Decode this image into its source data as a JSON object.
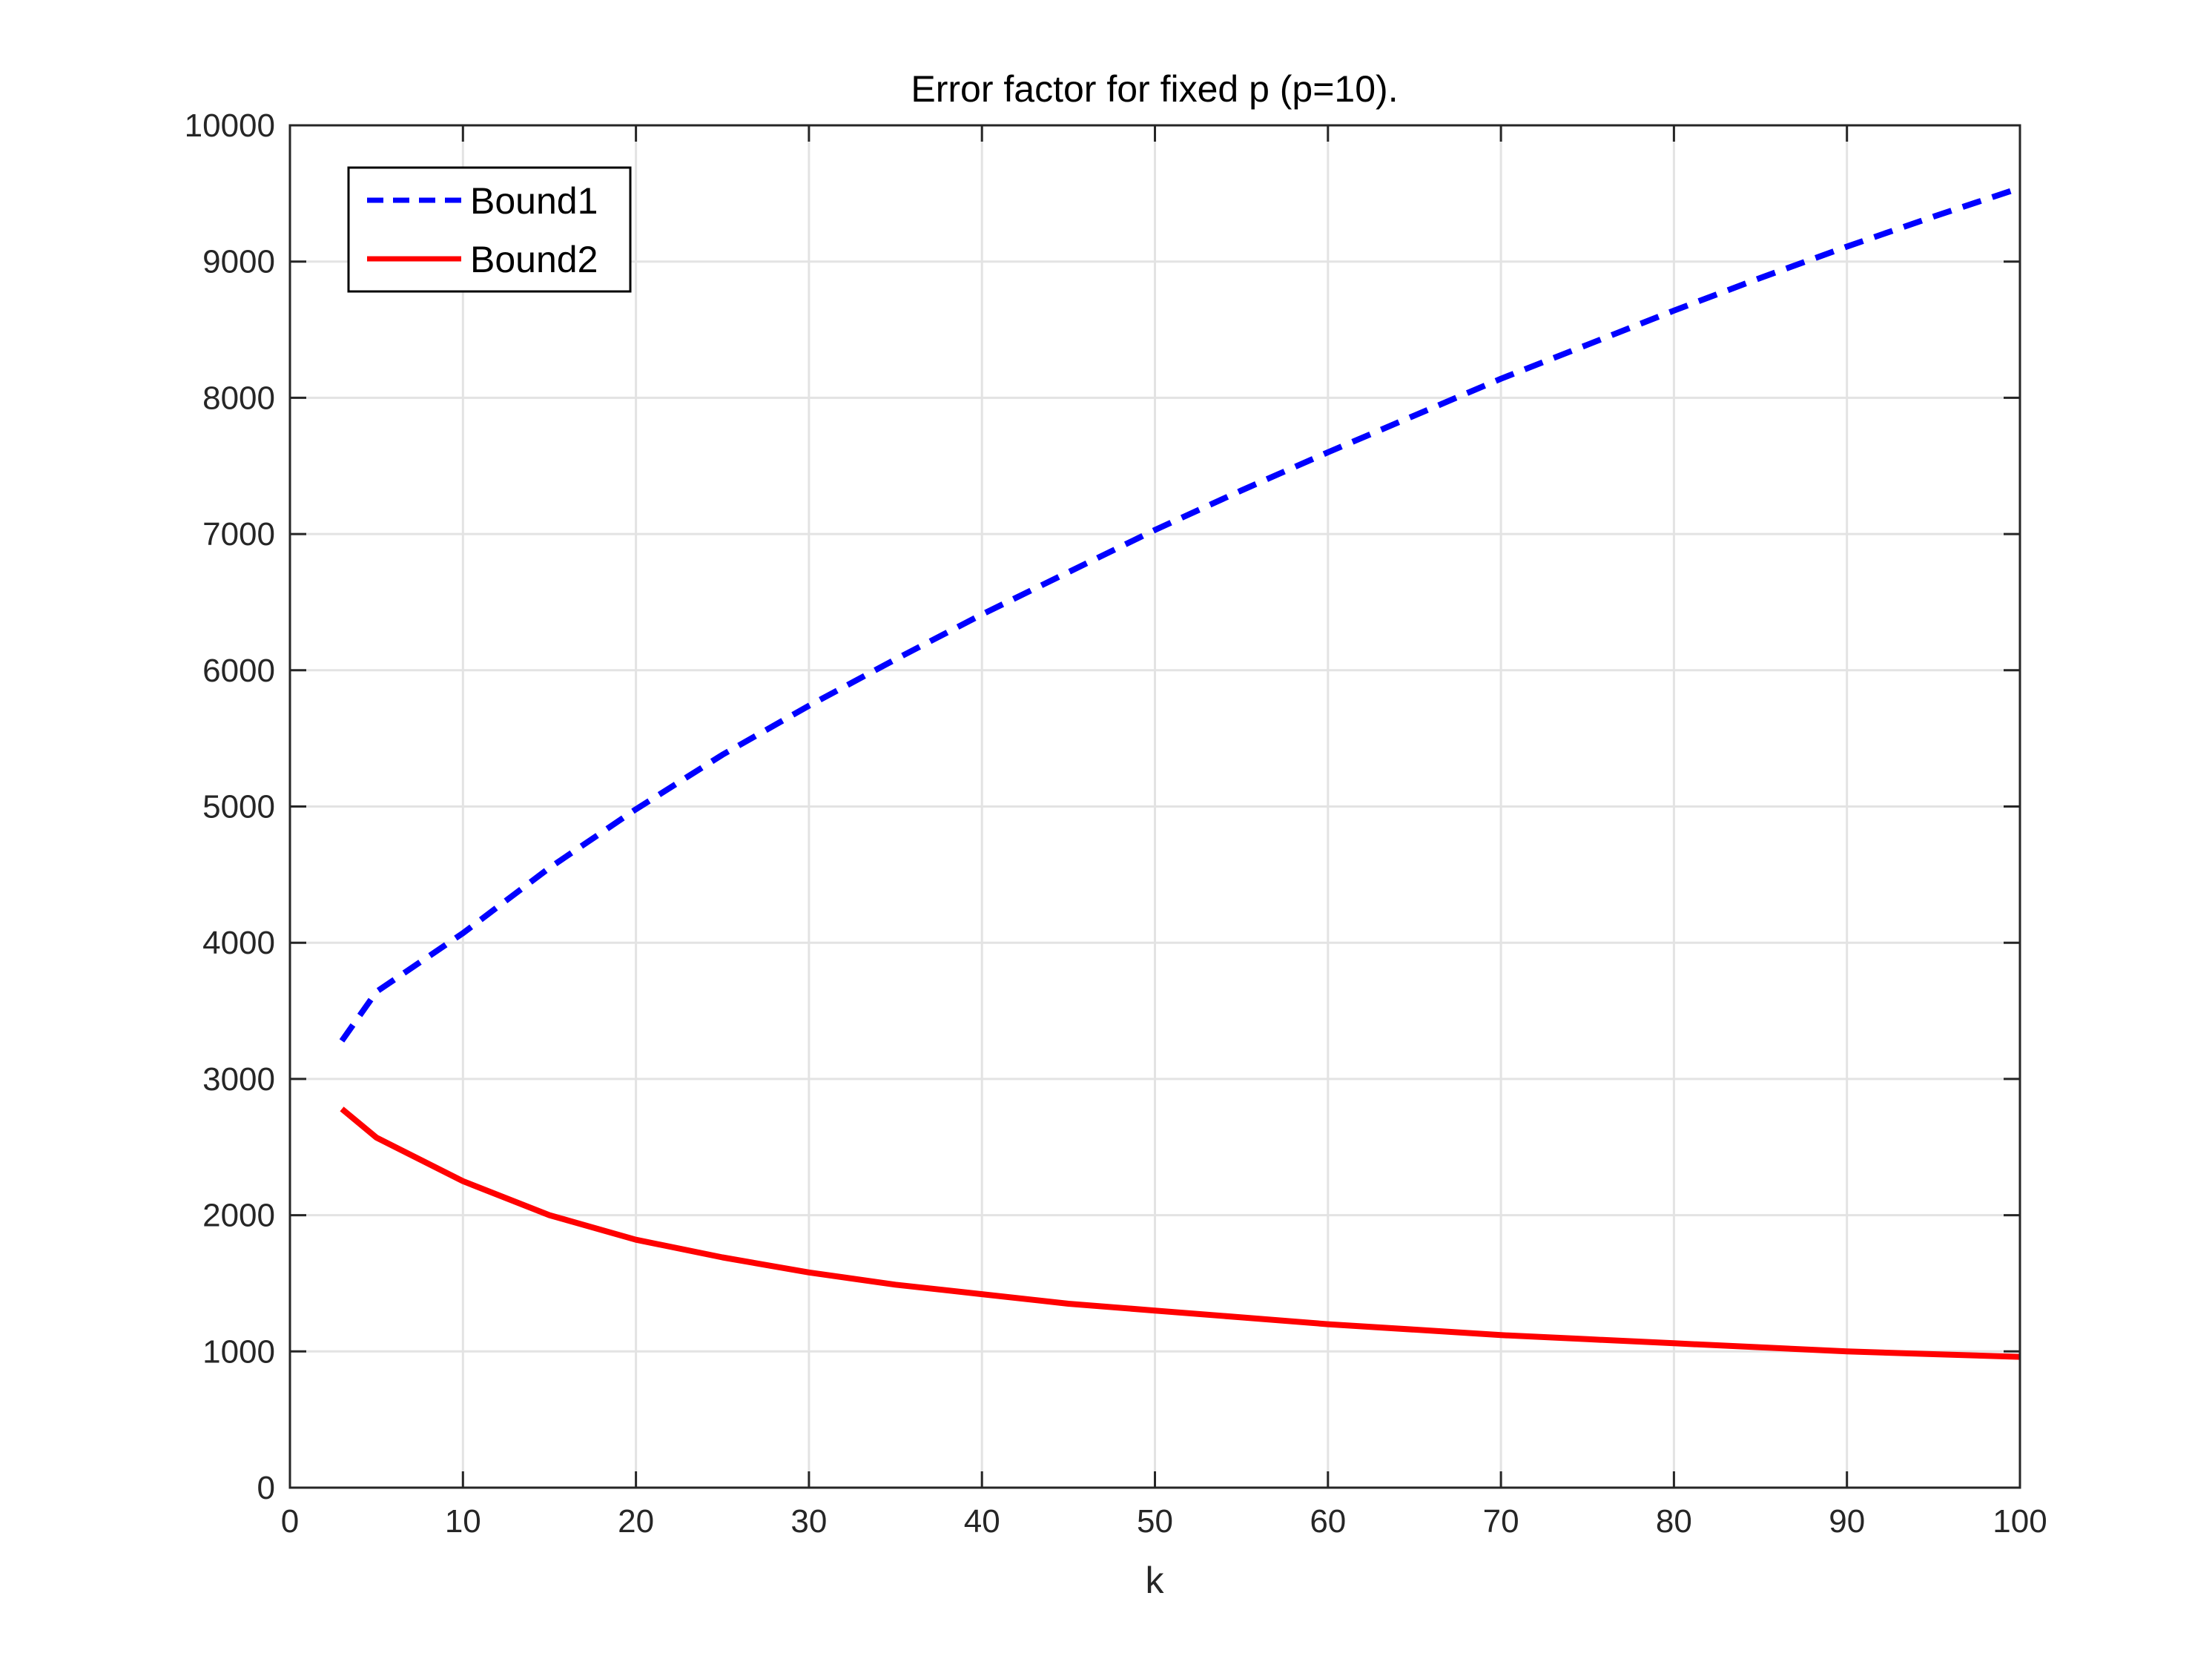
{
  "chart_data": {
    "type": "line",
    "title": "Error factor for fixed p (p=10).",
    "xlabel": "k",
    "ylabel": "",
    "xlim": [
      0,
      100
    ],
    "ylim": [
      0,
      10000
    ],
    "xticks": [
      0,
      10,
      20,
      30,
      40,
      50,
      60,
      70,
      80,
      90,
      100
    ],
    "yticks": [
      0,
      1000,
      2000,
      3000,
      4000,
      5000,
      6000,
      7000,
      8000,
      9000,
      10000
    ],
    "grid": true,
    "legend_position": "top-left",
    "series": [
      {
        "name": "Bound1",
        "color": "#0000ff",
        "line_style": "dashed",
        "x": [
          3,
          5,
          10,
          15,
          20,
          25,
          30,
          35,
          40,
          45,
          50,
          55,
          60,
          65,
          70,
          75,
          80,
          85,
          90,
          95,
          100
        ],
        "y": [
          3280,
          3640,
          4070,
          4550,
          4980,
          5380,
          5740,
          6080,
          6410,
          6720,
          7030,
          7320,
          7600,
          7870,
          8140,
          8390,
          8640,
          8880,
          9110,
          9330,
          9540
        ]
      },
      {
        "name": "Bound2",
        "color": "#ff0000",
        "line_style": "solid",
        "x": [
          3,
          5,
          10,
          15,
          20,
          25,
          30,
          35,
          40,
          45,
          50,
          55,
          60,
          65,
          70,
          75,
          80,
          85,
          90,
          95,
          100
        ],
        "y": [
          2780,
          2570,
          2250,
          2000,
          1820,
          1690,
          1580,
          1490,
          1420,
          1350,
          1300,
          1250,
          1200,
          1160,
          1120,
          1090,
          1060,
          1030,
          1000,
          980,
          960
        ]
      }
    ]
  }
}
